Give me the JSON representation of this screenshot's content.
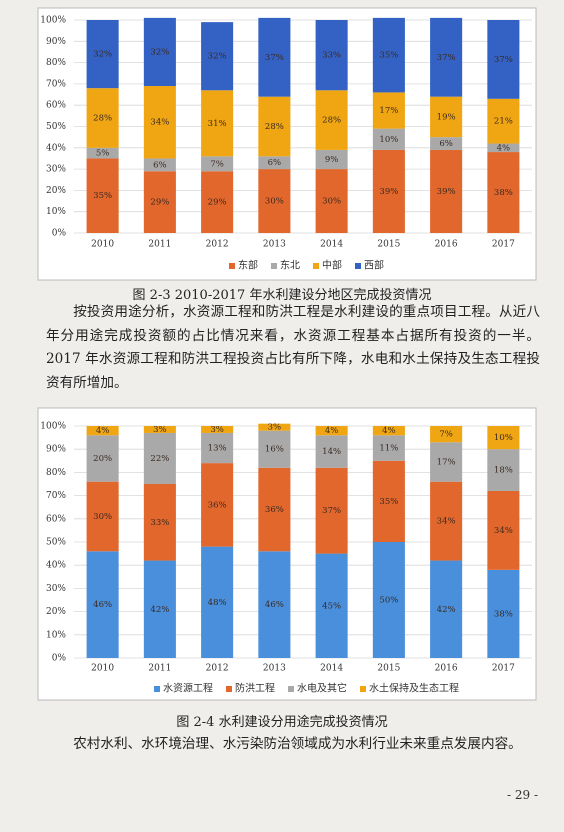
{
  "chart_data": [
    {
      "type": "stacked_bar",
      "legend": "bottom",
      "grid": true,
      "categories": [
        "2010",
        "2011",
        "2012",
        "2013",
        "2014",
        "2015",
        "2016",
        "2017"
      ],
      "ylim": [
        0,
        100
      ],
      "yticks": [
        {
          "value": 0,
          "label": "0%"
        },
        {
          "value": 10,
          "label": "10%"
        },
        {
          "value": 20,
          "label": "20%"
        },
        {
          "value": 30,
          "label": "30%"
        },
        {
          "value": 40,
          "label": "40%"
        },
        {
          "value": 50,
          "label": "50%"
        },
        {
          "value": 60,
          "label": "60%"
        },
        {
          "value": 70,
          "label": "70%"
        },
        {
          "value": 80,
          "label": "80%"
        },
        {
          "value": 90,
          "label": "90%"
        },
        {
          "value": 100,
          "label": "100%"
        }
      ],
      "series": [
        {
          "name": "东部",
          "color": "#e2672c",
          "values": [
            35,
            29,
            29,
            30,
            30,
            39,
            39,
            38
          ],
          "value_labels": [
            "35%",
            "29%",
            "29%",
            "30%",
            "30%",
            "39%",
            "39%",
            "38%"
          ]
        },
        {
          "name": "东北",
          "color": "#a9a9a9",
          "values": [
            5,
            6,
            7,
            6,
            9,
            10,
            6,
            4
          ],
          "value_labels": [
            "5%",
            "6%",
            "7%",
            "6%",
            "9%",
            "10%",
            "6%",
            "4%"
          ]
        },
        {
          "name": "中部",
          "color": "#f0a612",
          "values": [
            28,
            34,
            31,
            28,
            28,
            17,
            19,
            21
          ],
          "value_labels": [
            "28%",
            "34%",
            "31%",
            "28%",
            "28%",
            "17%",
            "19%",
            "21%"
          ]
        },
        {
          "name": "西部",
          "color": "#3462c4",
          "values": [
            32,
            32,
            32,
            37,
            33,
            35,
            37,
            37
          ],
          "value_labels": [
            "32%",
            "32%",
            "32%",
            "37%",
            "33%",
            "35%",
            "37%",
            "37%"
          ]
        }
      ]
    },
    {
      "type": "stacked_bar",
      "legend": "bottom",
      "grid": true,
      "categories": [
        "2010",
        "2011",
        "2012",
        "2013",
        "2014",
        "2015",
        "2016",
        "2017"
      ],
      "ylim": [
        0,
        100
      ],
      "yticks": [
        {
          "value": 0,
          "label": "0%"
        },
        {
          "value": 10,
          "label": "10%"
        },
        {
          "value": 20,
          "label": "20%"
        },
        {
          "value": 30,
          "label": "30%"
        },
        {
          "value": 40,
          "label": "40%"
        },
        {
          "value": 50,
          "label": "50%"
        },
        {
          "value": 60,
          "label": "60%"
        },
        {
          "value": 70,
          "label": "70%"
        },
        {
          "value": 80,
          "label": "80%"
        },
        {
          "value": 90,
          "label": "90%"
        },
        {
          "value": 100,
          "label": "100%"
        }
      ],
      "series": [
        {
          "name": "水资源工程",
          "color": "#4a8fdc",
          "values": [
            46,
            42,
            48,
            46,
            45,
            50,
            42,
            38
          ],
          "value_labels": [
            "46%",
            "42%",
            "48%",
            "46%",
            "45%",
            "50%",
            "42%",
            "38%"
          ]
        },
        {
          "name": "防洪工程",
          "color": "#e2672c",
          "values": [
            30,
            33,
            36,
            36,
            37,
            35,
            34,
            34
          ],
          "value_labels": [
            "30%",
            "33%",
            "36%",
            "36%",
            "37%",
            "35%",
            "34%",
            "34%"
          ]
        },
        {
          "name": "水电及其它",
          "color": "#a9a9a9",
          "values": [
            20,
            22,
            13,
            16,
            14,
            11,
            17,
            18
          ],
          "value_labels": [
            "20%",
            "22%",
            "13%",
            "16%",
            "14%",
            "11%",
            "17%",
            "18%"
          ]
        },
        {
          "name": "水土保持及生态工程",
          "color": "#f0a612",
          "values": [
            4,
            3,
            3,
            3,
            4,
            4,
            7,
            10
          ],
          "value_labels": [
            "4%",
            "3%",
            "3%",
            "3%",
            "4%",
            "4%",
            "7%",
            "10%"
          ]
        }
      ]
    }
  ],
  "document": {
    "caption_1": "图 2-3    2010-2017 年水利建设分地区完成投资情况",
    "paragraph_1": "按投资用途分析，水资源工程和防洪工程是水利建设的重点项目工程。从近八年分用途完成投资额的占比情况来看，水资源工程基本占据所有投资的一半。2017 年水资源工程和防洪工程投资占比有所下降，水电和水土保持及生态工程投资有所增加。",
    "caption_2": "图 2-4    水利建设分用途完成投资情况",
    "paragraph_2": "农村水利、水环境治理、水污染防治领域成为水利行业未来重点发展内容。",
    "page_number": "- 29 -"
  }
}
